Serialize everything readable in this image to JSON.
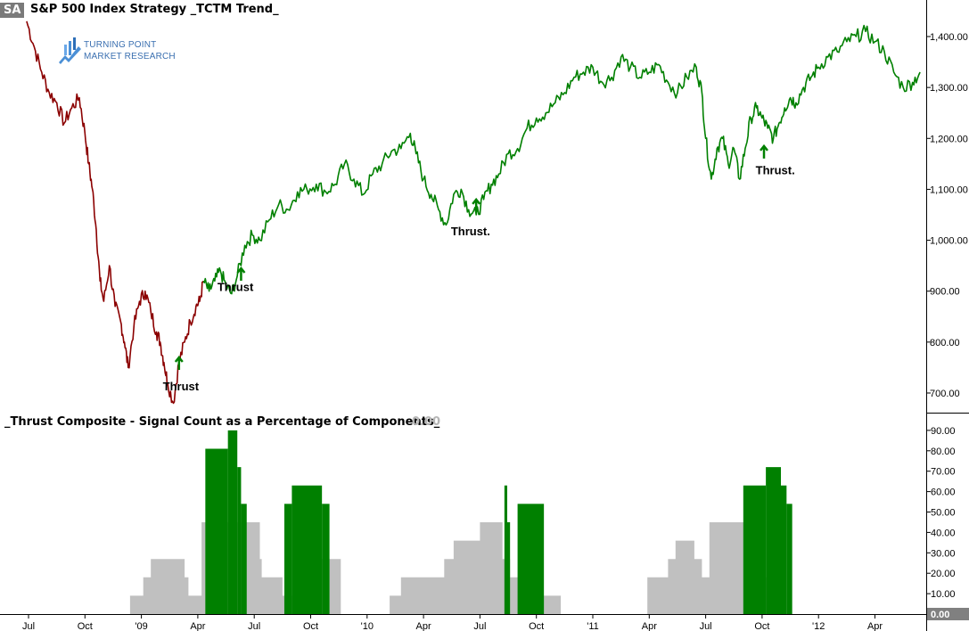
{
  "header": {
    "symbol": "SA",
    "title": "S&P 500 Index  Strategy  _TCTM Trend_"
  },
  "logo": {
    "line1": "TURNING POINT",
    "line2": "MARKET RESEARCH"
  },
  "lower_panel": {
    "title": "_Thrust Composite - Signal Count as a Percentage of Components_",
    "current_value": "0.00"
  },
  "colors": {
    "downtrend": "#8b0000",
    "uptrend": "#008000",
    "signal": "#008000",
    "composite": "#c0c0c0",
    "axis": "#000000"
  },
  "chart_data": [
    {
      "type": "line",
      "title": "S&P 500 Index  Strategy  _TCTM Trend_",
      "ylim": [
        660,
        1460
      ],
      "yticks": [
        "700.00",
        "800.00",
        "900.00",
        "1,000.00",
        "1,100.00",
        "1,200.00",
        "1,300.00",
        "1,400.00"
      ],
      "ytick_values": [
        700,
        800,
        900,
        1000,
        1100,
        1200,
        1300,
        1400
      ],
      "xticks": [
        "Jul",
        "Oct",
        "'09",
        "Apr",
        "Jul",
        "Oct",
        "'10",
        "Apr",
        "Jul",
        "Oct",
        "'11",
        "Apr",
        "Jul",
        "Oct",
        "'12",
        "Apr"
      ],
      "xtick_months": [
        0,
        3,
        6,
        9,
        12,
        15,
        18,
        21,
        24,
        27,
        30,
        33,
        36,
        39,
        42,
        45
      ],
      "series": [
        {
          "trend": "down",
          "points": [
            [
              -0.1,
              1430
            ],
            [
              0.3,
              1380
            ],
            [
              0.7,
              1330
            ],
            [
              1.1,
              1290
            ],
            [
              1.5,
              1270
            ],
            [
              1.9,
              1230
            ],
            [
              2.3,
              1260
            ],
            [
              2.7,
              1280
            ],
            [
              3.0,
              1210
            ],
            [
              3.2,
              1150
            ],
            [
              3.4,
              1100
            ],
            [
              3.6,
              1020
            ],
            [
              3.8,
              920
            ],
            [
              4.0,
              880
            ],
            [
              4.3,
              950
            ],
            [
              4.6,
              870
            ],
            [
              4.9,
              840
            ],
            [
              5.1,
              800
            ],
            [
              5.3,
              750
            ],
            [
              5.6,
              830
            ],
            [
              5.9,
              880
            ],
            [
              6.2,
              900
            ],
            [
              6.5,
              860
            ],
            [
              6.8,
              820
            ],
            [
              7.0,
              800
            ],
            [
              7.2,
              760
            ],
            [
              7.4,
              720
            ],
            [
              7.7,
              680
            ],
            [
              8.0,
              760
            ],
            [
              8.3,
              800
            ],
            [
              8.6,
              840
            ],
            [
              8.9,
              870
            ],
            [
              9.1,
              880
            ],
            [
              9.3,
              920
            ]
          ]
        },
        {
          "trend": "up",
          "points": [
            [
              9.3,
              920
            ],
            [
              9.6,
              900
            ],
            [
              9.9,
              920
            ],
            [
              10.2,
              940
            ],
            [
              10.5,
              910
            ],
            [
              10.8,
              895
            ],
            [
              11.1,
              930
            ],
            [
              11.5,
              990
            ],
            [
              11.9,
              1010
            ],
            [
              12.3,
              1000
            ],
            [
              12.8,
              1040
            ],
            [
              13.3,
              1070
            ],
            [
              13.8,
              1060
            ],
            [
              14.3,
              1095
            ],
            [
              14.8,
              1100
            ],
            [
              15.3,
              1110
            ],
            [
              15.8,
              1095
            ],
            [
              16.3,
              1110
            ],
            [
              16.8,
              1150
            ],
            [
              17.3,
              1120
            ],
            [
              17.8,
              1090
            ],
            [
              18.3,
              1130
            ],
            [
              18.8,
              1150
            ],
            [
              19.3,
              1175
            ],
            [
              19.8,
              1180
            ],
            [
              20.3,
              1210
            ],
            [
              20.6,
              1170
            ],
            [
              21.0,
              1120
            ],
            [
              21.4,
              1090
            ],
            [
              21.8,
              1060
            ],
            [
              22.2,
              1030
            ],
            [
              22.6,
              1090
            ],
            [
              23.0,
              1100
            ],
            [
              23.4,
              1060
            ],
            [
              23.8,
              1050
            ],
            [
              24.2,
              1080
            ],
            [
              24.6,
              1110
            ],
            [
              25.0,
              1130
            ],
            [
              25.5,
              1170
            ],
            [
              26.0,
              1180
            ],
            [
              26.5,
              1220
            ],
            [
              27.0,
              1240
            ],
            [
              27.5,
              1250
            ],
            [
              28.0,
              1270
            ],
            [
              28.5,
              1290
            ],
            [
              29.0,
              1320
            ],
            [
              29.5,
              1330
            ],
            [
              30.0,
              1340
            ],
            [
              30.5,
              1310
            ],
            [
              31.0,
              1320
            ],
            [
              31.5,
              1360
            ],
            [
              32.0,
              1340
            ],
            [
              32.5,
              1320
            ],
            [
              33.0,
              1330
            ],
            [
              33.5,
              1345
            ],
            [
              34.0,
              1310
            ],
            [
              34.5,
              1290
            ],
            [
              35.0,
              1320
            ],
            [
              35.5,
              1340
            ],
            [
              35.8,
              1290
            ],
            [
              36.0,
              1200
            ],
            [
              36.3,
              1120
            ],
            [
              36.6,
              1180
            ],
            [
              36.9,
              1200
            ],
            [
              37.2,
              1150
            ],
            [
              37.5,
              1180
            ],
            [
              37.8,
              1120
            ],
            [
              38.1,
              1180
            ],
            [
              38.4,
              1240
            ],
            [
              38.7,
              1260
            ],
            [
              39.0,
              1240
            ],
            [
              39.3,
              1220
            ],
            [
              39.6,
              1200
            ],
            [
              39.9,
              1230
            ],
            [
              40.2,
              1260
            ],
            [
              40.5,
              1280
            ],
            [
              40.8,
              1270
            ],
            [
              41.2,
              1300
            ],
            [
              41.6,
              1320
            ],
            [
              42.0,
              1340
            ],
            [
              42.5,
              1360
            ],
            [
              43.0,
              1370
            ],
            [
              43.5,
              1390
            ],
            [
              44.0,
              1400
            ],
            [
              44.5,
              1410
            ],
            [
              45.0,
              1390
            ],
            [
              45.5,
              1370
            ],
            [
              46.0,
              1330
            ],
            [
              46.5,
              1300
            ],
            [
              47.0,
              1310
            ],
            [
              47.4,
              1330
            ]
          ]
        }
      ],
      "signals": [
        {
          "month": 8.0,
          "value": 770
        },
        {
          "month": 11.3,
          "value": 945
        },
        {
          "month": 23.8,
          "value": 1080
        },
        {
          "month": 39.1,
          "value": 1185
        }
      ],
      "annotations": [
        {
          "text": "Thrust",
          "month": 8.1,
          "value": 705
        },
        {
          "text": "Thrust",
          "month": 11.0,
          "value": 900
        },
        {
          "text": "Thrust.",
          "month": 23.5,
          "value": 1010
        },
        {
          "text": "Thrust.",
          "month": 39.7,
          "value": 1130
        }
      ]
    },
    {
      "type": "bar",
      "title": "_Thrust Composite - Signal Count as a Percentage of Components_",
      "ylim": [
        0,
        93
      ],
      "yticks": [
        "0.00",
        "10.00",
        "20.00",
        "30.00",
        "40.00",
        "50.00",
        "60.00",
        "70.00",
        "80.00",
        "90.00"
      ],
      "ytick_values": [
        0,
        10,
        20,
        30,
        40,
        50,
        60,
        70,
        80,
        90
      ],
      "current_value": "0.00",
      "background_steps": [
        [
          5.4,
          0
        ],
        [
          5.4,
          9
        ],
        [
          6.1,
          9
        ],
        [
          6.1,
          18
        ],
        [
          6.5,
          18
        ],
        [
          6.5,
          27
        ],
        [
          8.3,
          27
        ],
        [
          8.3,
          18
        ],
        [
          8.5,
          18
        ],
        [
          8.5,
          9
        ],
        [
          9.2,
          9
        ],
        [
          9.2,
          45
        ],
        [
          12.3,
          45
        ],
        [
          12.3,
          27
        ],
        [
          12.4,
          27
        ],
        [
          12.4,
          18
        ],
        [
          13.5,
          18
        ],
        [
          13.5,
          9
        ],
        [
          15.3,
          9
        ],
        [
          15.3,
          27
        ],
        [
          16.6,
          27
        ],
        [
          16.6,
          0
        ],
        [
          19.2,
          0
        ],
        [
          19.2,
          9
        ],
        [
          19.8,
          9
        ],
        [
          19.8,
          18
        ],
        [
          22.1,
          18
        ],
        [
          22.1,
          27
        ],
        [
          22.6,
          27
        ],
        [
          22.6,
          36
        ],
        [
          24.0,
          36
        ],
        [
          24.0,
          45
        ],
        [
          25.2,
          45
        ],
        [
          25.2,
          27
        ],
        [
          25.6,
          27
        ],
        [
          25.6,
          18
        ],
        [
          26.1,
          18
        ],
        [
          26.1,
          9
        ],
        [
          28.3,
          9
        ],
        [
          28.3,
          0
        ],
        [
          32.9,
          0
        ],
        [
          32.9,
          18
        ],
        [
          34.0,
          18
        ],
        [
          34.0,
          27
        ],
        [
          34.4,
          27
        ],
        [
          34.4,
          36
        ],
        [
          35.4,
          36
        ],
        [
          35.4,
          27
        ],
        [
          35.8,
          27
        ],
        [
          35.8,
          18
        ],
        [
          36.2,
          18
        ],
        [
          36.2,
          45
        ],
        [
          38.6,
          45
        ],
        [
          38.6,
          27
        ],
        [
          38.9,
          27
        ],
        [
          38.9,
          18
        ],
        [
          39.9,
          18
        ],
        [
          39.9,
          0
        ]
      ],
      "signal_bars": [
        {
          "start": 9.4,
          "end": 10.6,
          "value": 81
        },
        {
          "start": 10.6,
          "end": 11.1,
          "value": 90
        },
        {
          "start": 11.1,
          "end": 11.3,
          "value": 72
        },
        {
          "start": 11.3,
          "end": 11.6,
          "value": 54
        },
        {
          "start": 13.6,
          "end": 14.0,
          "value": 54
        },
        {
          "start": 14.0,
          "end": 15.6,
          "value": 63
        },
        {
          "start": 15.6,
          "end": 16.0,
          "value": 54
        },
        {
          "start": 25.3,
          "end": 25.45,
          "value": 63
        },
        {
          "start": 25.45,
          "end": 25.6,
          "value": 45
        },
        {
          "start": 26.0,
          "end": 27.4,
          "value": 54
        },
        {
          "start": 38.0,
          "end": 39.2,
          "value": 63
        },
        {
          "start": 39.2,
          "end": 40.0,
          "value": 72
        },
        {
          "start": 40.0,
          "end": 40.3,
          "value": 63
        },
        {
          "start": 40.3,
          "end": 40.6,
          "value": 54
        }
      ]
    }
  ]
}
